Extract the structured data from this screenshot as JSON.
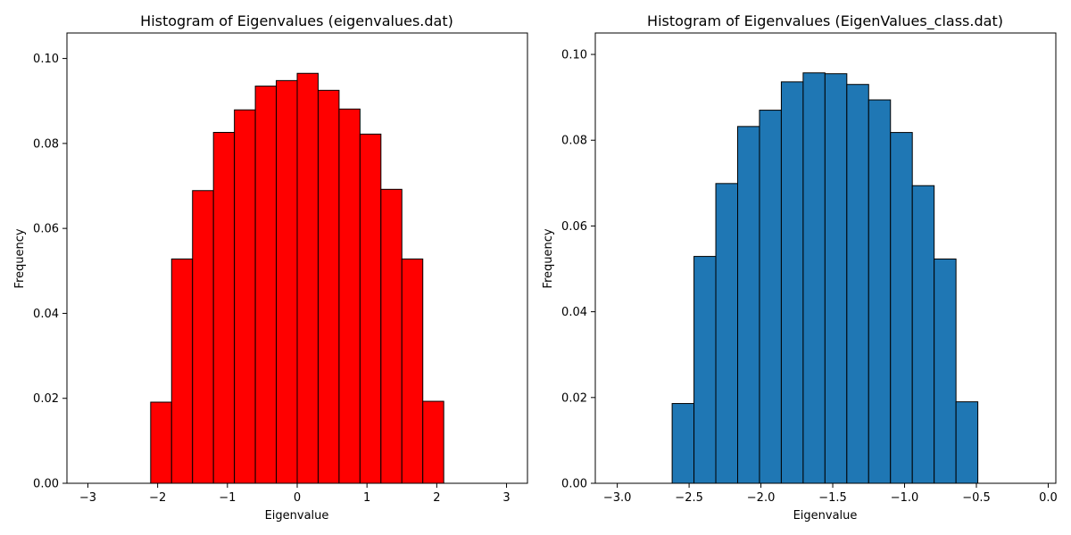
{
  "chart_data": [
    {
      "type": "bar",
      "title": "Histogram of Eigenvalues (eigenvalues.dat)",
      "xlabel": "Eigenvalue",
      "ylabel": "Frequency",
      "xlim": [
        -3.3,
        3.3
      ],
      "ylim": [
        0,
        0.106
      ],
      "x_ticks": [
        -3,
        -2,
        -1,
        0,
        1,
        2,
        3
      ],
      "x_tick_labels": [
        "−3",
        "−2",
        "−1",
        "0",
        "1",
        "2",
        "3"
      ],
      "y_ticks": [
        0,
        0.02,
        0.04,
        0.06,
        0.08,
        0.1
      ],
      "y_tick_labels": [
        "0.00",
        "0.02",
        "0.04",
        "0.06",
        "0.08",
        "0.10"
      ],
      "bar_color": "#ff0000",
      "edge_color": "#000000",
      "bins": [
        {
          "x0": -3.0,
          "x1": -2.7,
          "value": 0
        },
        {
          "x0": -2.7,
          "x1": -2.4,
          "value": 0
        },
        {
          "x0": -2.4,
          "x1": -2.1,
          "value": 0
        },
        {
          "x0": -2.1,
          "x1": -1.8,
          "value": 0.0191
        },
        {
          "x0": -1.8,
          "x1": -1.5,
          "value": 0.0528
        },
        {
          "x0": -1.5,
          "x1": -1.2,
          "value": 0.0689
        },
        {
          "x0": -1.2,
          "x1": -0.9,
          "value": 0.0826
        },
        {
          "x0": -0.9,
          "x1": -0.6,
          "value": 0.0879
        },
        {
          "x0": -0.6,
          "x1": -0.3,
          "value": 0.0935
        },
        {
          "x0": -0.3,
          "x1": 0.0,
          "value": 0.0948
        },
        {
          "x0": 0.0,
          "x1": 0.3,
          "value": 0.0965
        },
        {
          "x0": 0.3,
          "x1": 0.6,
          "value": 0.0925
        },
        {
          "x0": 0.6,
          "x1": 0.9,
          "value": 0.0881
        },
        {
          "x0": 0.9,
          "x1": 1.2,
          "value": 0.0822
        },
        {
          "x0": 1.2,
          "x1": 1.5,
          "value": 0.0692
        },
        {
          "x0": 1.5,
          "x1": 1.8,
          "value": 0.0528
        },
        {
          "x0": 1.8,
          "x1": 2.1,
          "value": 0.0193
        },
        {
          "x0": 2.1,
          "x1": 2.4,
          "value": 0
        },
        {
          "x0": 2.4,
          "x1": 2.7,
          "value": 0
        },
        {
          "x0": 2.7,
          "x1": 3.0,
          "value": 0
        }
      ]
    },
    {
      "type": "bar",
      "title": "Histogram of Eigenvalues (EigenValues_class.dat)",
      "xlabel": "Eigenvalue",
      "ylabel": "Frequency",
      "xlim": [
        -3.153,
        0.053
      ],
      "ylim": [
        0,
        0.105
      ],
      "x_ticks": [
        -3.0,
        -2.5,
        -2.0,
        -1.5,
        -1.0,
        -0.5,
        0.0
      ],
      "x_tick_labels": [
        "−3.0",
        "−2.5",
        "−2.0",
        "−1.5",
        "−1.0",
        "−0.5",
        "0.0"
      ],
      "y_ticks": [
        0,
        0.02,
        0.04,
        0.06,
        0.08,
        0.1
      ],
      "y_tick_labels": [
        "0.00",
        "0.02",
        "0.04",
        "0.06",
        "0.08",
        "0.10"
      ],
      "bar_color": "#1f77b4",
      "edge_color": "#000000",
      "bins": [
        {
          "x0": -3.007,
          "x1": -2.861,
          "value": 0
        },
        {
          "x0": -2.861,
          "x1": -2.716,
          "value": 0
        },
        {
          "x0": -2.716,
          "x1": -2.618,
          "value": 0
        },
        {
          "x0": -2.618,
          "x1": -2.466,
          "value": 0.0186
        },
        {
          "x0": -2.466,
          "x1": -2.314,
          "value": 0.0529
        },
        {
          "x0": -2.314,
          "x1": -2.162,
          "value": 0.0699
        },
        {
          "x0": -2.162,
          "x1": -2.01,
          "value": 0.0832
        },
        {
          "x0": -2.01,
          "x1": -1.858,
          "value": 0.087
        },
        {
          "x0": -1.858,
          "x1": -1.706,
          "value": 0.0936
        },
        {
          "x0": -1.706,
          "x1": -1.554,
          "value": 0.0957
        },
        {
          "x0": -1.554,
          "x1": -1.402,
          "value": 0.0955
        },
        {
          "x0": -1.402,
          "x1": -1.25,
          "value": 0.093
        },
        {
          "x0": -1.25,
          "x1": -1.098,
          "value": 0.0894
        },
        {
          "x0": -1.098,
          "x1": -0.946,
          "value": 0.0818
        },
        {
          "x0": -0.946,
          "x1": -0.794,
          "value": 0.0694
        },
        {
          "x0": -0.794,
          "x1": -0.642,
          "value": 0.0523
        },
        {
          "x0": -0.642,
          "x1": -0.49,
          "value": 0.019
        },
        {
          "x0": -0.49,
          "x1": -0.338,
          "value": 0
        },
        {
          "x0": -0.338,
          "x1": -0.186,
          "value": 0
        },
        {
          "x0": -0.186,
          "x1": -0.09,
          "value": 0
        }
      ]
    }
  ]
}
